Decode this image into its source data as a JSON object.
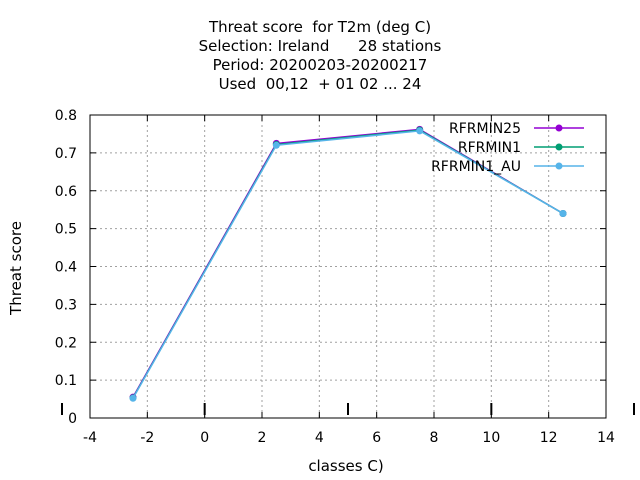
{
  "chart_data": {
    "type": "line",
    "title_lines": [
      "Threat score  for T2m (deg C)",
      "Selection: Ireland      28 stations",
      "Period: 20200203-20200217",
      "Used  00,12  + 01 02 ... 24"
    ],
    "xlabel": "classes C)",
    "ylabel": "Threat score",
    "xlim": [
      -4,
      14
    ],
    "ylim": [
      0,
      0.8
    ],
    "xticks": [
      -4,
      -2,
      0,
      2,
      4,
      6,
      8,
      10,
      12,
      14
    ],
    "yticks": [
      0,
      0.1,
      0.2,
      0.3,
      0.4,
      0.5,
      0.6,
      0.7,
      0.8
    ],
    "grid": true,
    "legend_position": "top-right",
    "series": [
      {
        "name": "RFRMIN25",
        "color": "#9400d3",
        "x": [
          -2.5,
          2.5,
          7.5,
          12.5
        ],
        "y": [
          0.055,
          0.725,
          0.762,
          0.54
        ]
      },
      {
        "name": "RFRMIN1",
        "color": "#009e73",
        "x": [
          -2.5,
          2.5,
          7.5,
          12.5
        ],
        "y": [
          0.053,
          0.722,
          0.76,
          0.54
        ]
      },
      {
        "name": "RFRMIN1_AU",
        "color": "#56b4e9",
        "x": [
          -2.5,
          2.5,
          7.5,
          12.5
        ],
        "y": [
          0.052,
          0.72,
          0.758,
          0.54
        ]
      }
    ],
    "x_marker_ticks": [
      0,
      5,
      10
    ]
  }
}
